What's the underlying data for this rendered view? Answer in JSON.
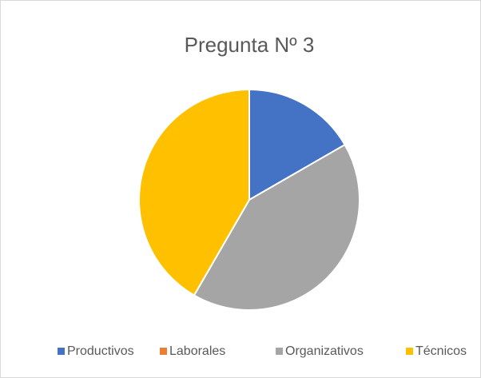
{
  "chart_data": {
    "type": "pie",
    "title": "Pregunta Nº 3",
    "categories": [
      "Productivos",
      "Laborales",
      "Organizativos",
      "Técnicos"
    ],
    "values": [
      16.7,
      0,
      41.7,
      41.7
    ],
    "colors": [
      "#4472c4",
      "#ed7d31",
      "#a5a5a5",
      "#ffc000"
    ],
    "legend": "bottom"
  }
}
